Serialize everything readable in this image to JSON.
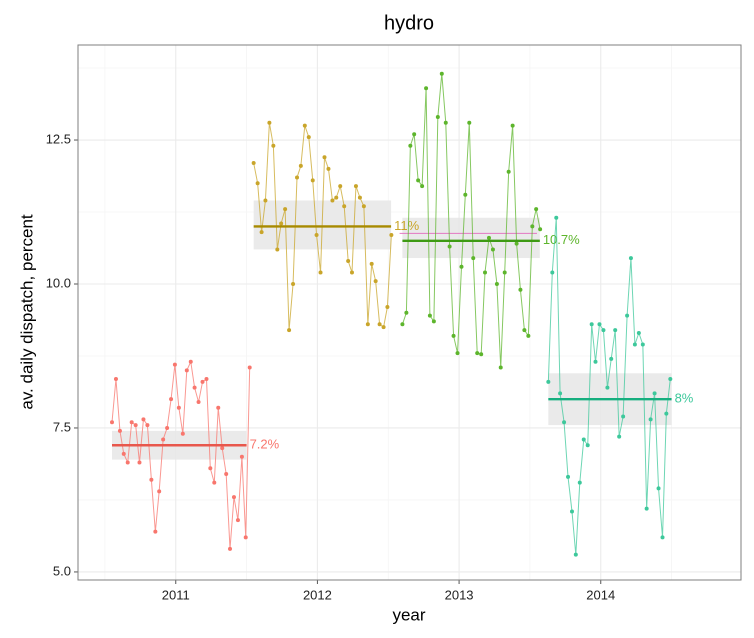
{
  "chart_data": {
    "type": "line",
    "title": "hydro",
    "x_label": "year",
    "y_label": "av. daily dispatch, percent",
    "xlim": [
      2010.31,
      2014.99
    ],
    "ylim": [
      4.86,
      14.15
    ],
    "xticks": [
      2011,
      2012,
      2013,
      2014
    ],
    "yticks": [
      {
        "value": 5.0,
        "label": "5.0"
      },
      {
        "value": 7.5,
        "label": "7.5"
      },
      {
        "value": 10.0,
        "label": "10.0"
      },
      {
        "value": 12.5,
        "label": "12.5"
      }
    ],
    "xminor": [
      2010.5,
      2011.5,
      2012.5,
      2013.5,
      2014.5
    ],
    "yminor": [
      6.25,
      8.75,
      11.25,
      13.75
    ],
    "grid": true,
    "series": [
      {
        "color": "#F8766D",
        "mean_color": "#E8574C",
        "x": [
          2010.55,
          2010.578,
          2010.606,
          2010.633,
          2010.661,
          2010.689,
          2010.717,
          2010.744,
          2010.772,
          2010.8,
          2010.828,
          2010.856,
          2010.883,
          2010.911,
          2010.939,
          2010.967,
          2010.994,
          2011.022,
          2011.05,
          2011.078,
          2011.106,
          2011.133,
          2011.161,
          2011.189,
          2011.217,
          2011.244,
          2011.272,
          2011.3,
          2011.328,
          2011.356,
          2011.383,
          2011.411,
          2011.439,
          2011.467,
          2011.494,
          2011.522
        ],
        "values": [
          7.6,
          8.35,
          7.45,
          7.05,
          6.9,
          7.6,
          7.55,
          6.9,
          7.65,
          7.55,
          6.6,
          5.7,
          6.4,
          7.3,
          7.5,
          8.0,
          8.6,
          7.85,
          7.4,
          8.5,
          8.65,
          8.2,
          7.95,
          8.3,
          8.35,
          6.8,
          6.55,
          7.85,
          7.15,
          6.7,
          5.4,
          6.3,
          5.9,
          7.0,
          5.6,
          8.55
        ],
        "mean": 7.2,
        "mean_label": "7.2%",
        "band": [
          6.95,
          7.45
        ],
        "span": [
          2010.55,
          2011.5
        ]
      },
      {
        "color": "#C9A52A",
        "mean_color": "#A88A00",
        "x": [
          2011.55,
          2011.578,
          2011.606,
          2011.633,
          2011.661,
          2011.689,
          2011.717,
          2011.744,
          2011.772,
          2011.8,
          2011.828,
          2011.856,
          2011.883,
          2011.911,
          2011.939,
          2011.967,
          2011.994,
          2012.022,
          2012.05,
          2012.078,
          2012.106,
          2012.133,
          2012.161,
          2012.189,
          2012.217,
          2012.244,
          2012.272,
          2012.3,
          2012.328,
          2012.356,
          2012.383,
          2012.411,
          2012.439,
          2012.467,
          2012.494,
          2012.522
        ],
        "values": [
          12.1,
          11.75,
          10.9,
          11.45,
          12.8,
          12.4,
          10.6,
          11.05,
          11.3,
          9.2,
          10.0,
          11.85,
          12.05,
          12.75,
          12.55,
          11.8,
          10.85,
          10.2,
          12.2,
          12.0,
          11.45,
          11.5,
          11.7,
          11.35,
          10.4,
          10.2,
          11.7,
          11.5,
          11.35,
          9.3,
          10.35,
          10.05,
          9.3,
          9.25,
          9.6,
          10.85
        ],
        "mean": 11.0,
        "mean_label": "11%",
        "band": [
          10.6,
          11.45
        ],
        "span": [
          2011.55,
          2012.52
        ]
      },
      {
        "color": "#5DB52C",
        "mean_color": "#3E9A14",
        "x": [
          2012.6,
          2012.628,
          2012.656,
          2012.683,
          2012.711,
          2012.739,
          2012.767,
          2012.794,
          2012.822,
          2012.85,
          2012.878,
          2012.906,
          2012.933,
          2012.961,
          2012.989,
          2013.017,
          2013.044,
          2013.072,
          2013.1,
          2013.128,
          2013.156,
          2013.183,
          2013.211,
          2013.239,
          2013.267,
          2013.294,
          2013.322,
          2013.35,
          2013.378,
          2013.406,
          2013.433,
          2013.461,
          2013.489,
          2013.517,
          2013.544,
          2013.572
        ],
        "values": [
          9.3,
          9.5,
          12.4,
          12.6,
          11.8,
          11.7,
          13.4,
          9.45,
          9.35,
          12.9,
          13.65,
          12.8,
          10.65,
          9.1,
          8.8,
          10.3,
          11.55,
          12.8,
          10.45,
          8.8,
          8.78,
          10.2,
          10.8,
          10.6,
          10.0,
          8.55,
          10.2,
          11.95,
          12.75,
          10.7,
          9.9,
          9.2,
          9.1,
          11.0,
          11.3,
          10.95
        ],
        "mean": 10.75,
        "mean_label": "10.7%",
        "band": [
          10.45,
          11.15
        ],
        "span": [
          2012.6,
          2013.57
        ]
      },
      {
        "color": "#3DC89B",
        "mean_color": "#16AE7E",
        "x": [
          2013.63,
          2013.658,
          2013.686,
          2013.713,
          2013.741,
          2013.769,
          2013.797,
          2013.824,
          2013.852,
          2013.88,
          2013.908,
          2013.936,
          2013.963,
          2013.991,
          2014.019,
          2014.047,
          2014.074,
          2014.102,
          2014.13,
          2014.158,
          2014.186,
          2014.213,
          2014.241,
          2014.269,
          2014.297,
          2014.324,
          2014.352,
          2014.38,
          2014.408,
          2014.436,
          2014.463,
          2014.491
        ],
        "values": [
          8.3,
          10.2,
          11.15,
          8.1,
          7.6,
          6.65,
          6.05,
          5.3,
          6.55,
          7.3,
          7.2,
          9.3,
          8.65,
          9.3,
          9.2,
          8.2,
          8.7,
          9.2,
          7.35,
          7.7,
          9.45,
          10.45,
          8.95,
          9.15,
          8.95,
          6.1,
          7.65,
          8.1,
          6.45,
          5.6,
          7.75,
          8.35
        ],
        "mean": 8.0,
        "mean_label": "8%",
        "band": [
          7.55,
          8.45
        ],
        "span": [
          2013.63,
          2014.5
        ]
      }
    ],
    "reference": {
      "value": 10.88,
      "span": [
        2012.58,
        2013.55
      ],
      "color": "#E377C2"
    }
  }
}
